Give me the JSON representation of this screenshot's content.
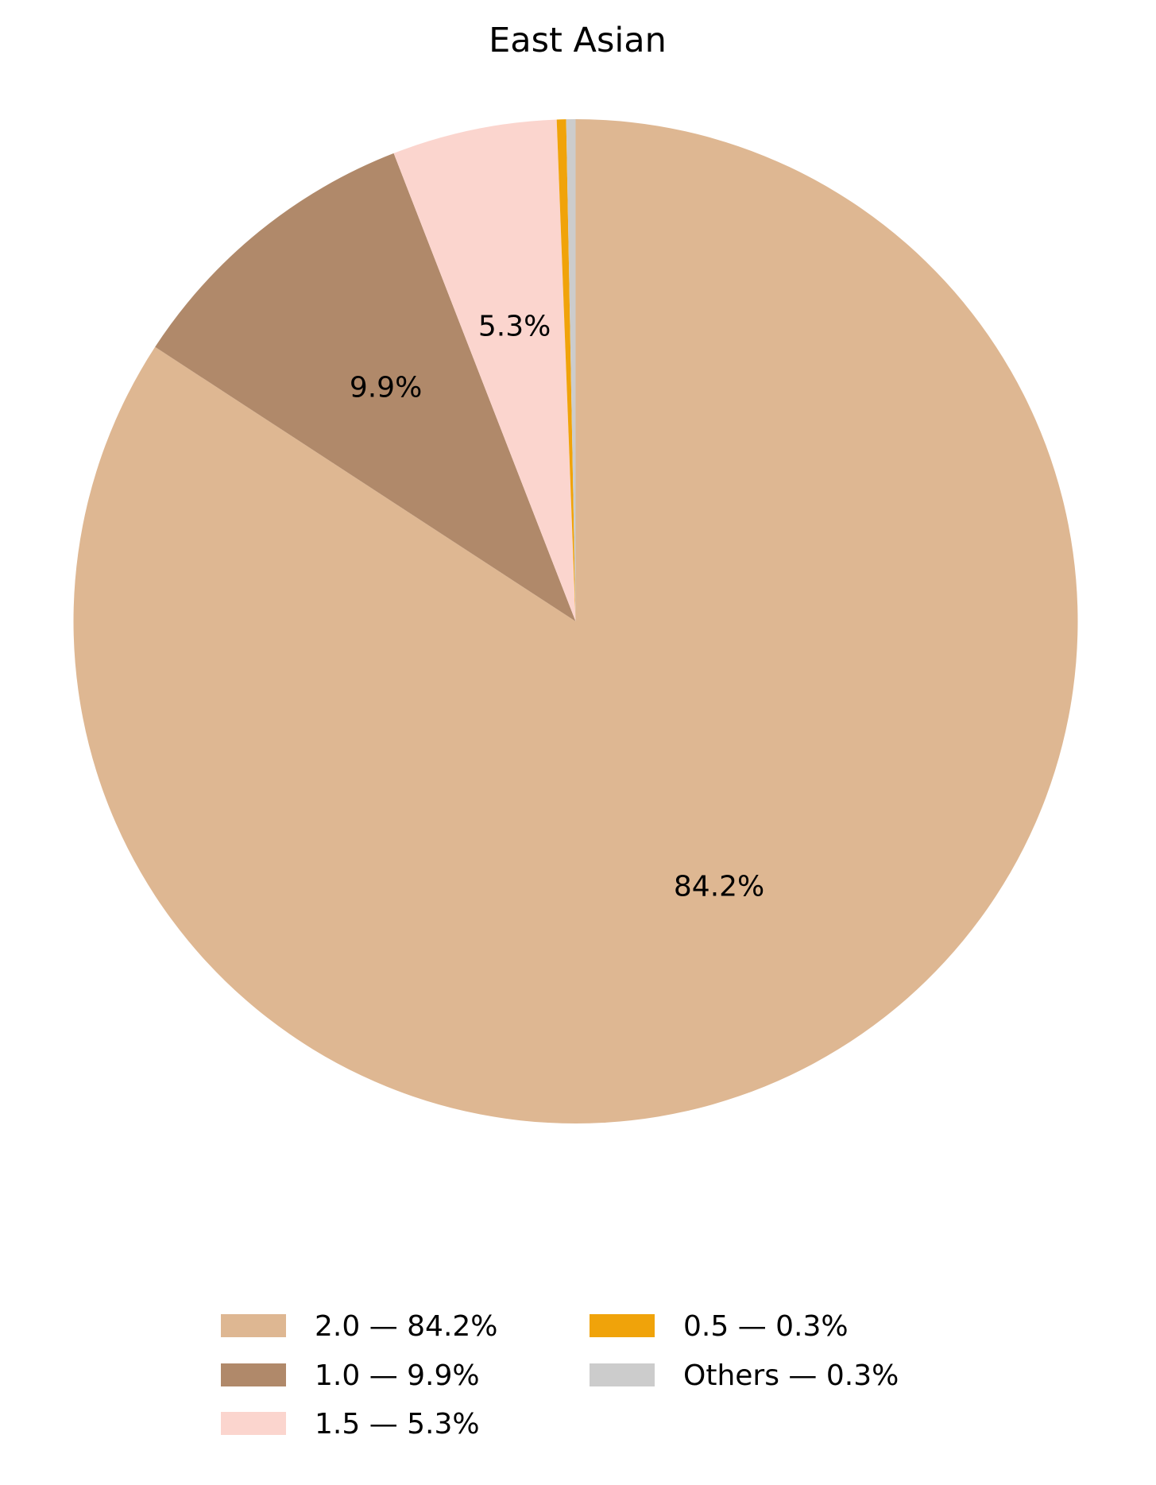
{
  "chart_data": {
    "type": "pie",
    "title": "East Asian",
    "start_angle_deg": 90,
    "direction": "clockwise",
    "slices": [
      {
        "label": "2.0",
        "value": 84.2,
        "pct_label": "84.2%",
        "legend": "2.0 — 84.2%",
        "color": "#DEB792"
      },
      {
        "label": "1.0",
        "value": 9.9,
        "pct_label": "9.9%",
        "legend": "1.0 — 9.9%",
        "color": "#B0896A"
      },
      {
        "label": "1.5",
        "value": 5.3,
        "pct_label": "5.3%",
        "legend": "1.5 — 5.3%",
        "color": "#FBD5CE"
      },
      {
        "label": "0.5",
        "value": 0.3,
        "pct_label": "",
        "legend": "0.5 — 0.3%",
        "color": "#F0A30A"
      },
      {
        "label": "Others",
        "value": 0.3,
        "pct_label": "",
        "legend": "Others — 0.3%",
        "color": "#CCCCCC"
      }
    ],
    "legend_position": "bottom"
  }
}
